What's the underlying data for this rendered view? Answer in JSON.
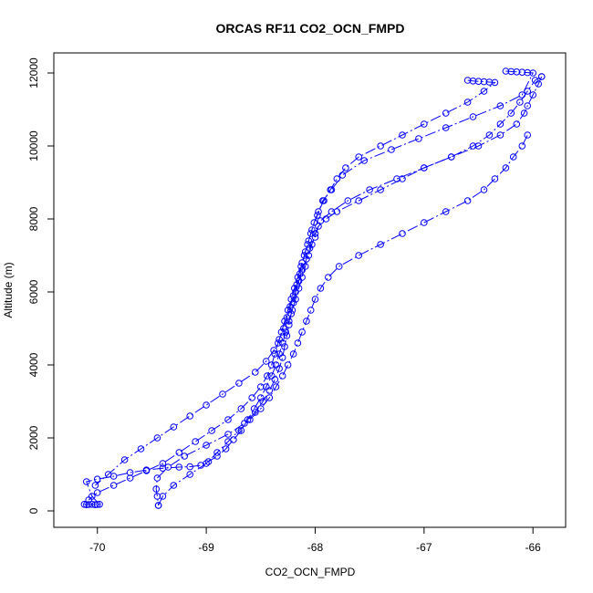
{
  "chart_data": {
    "type": "line",
    "title": "ORCAS RF11 CO2_OCN_FMPD",
    "xlabel": "CO2_OCN_FMPD",
    "ylabel": "Altitude (m)",
    "xlim": [
      -70.4,
      -65.7
    ],
    "ylim": [
      -450,
      12550
    ],
    "x_ticks": [
      -70,
      -69,
      -68,
      -67,
      -66
    ],
    "y_ticks": [
      0,
      2000,
      4000,
      6000,
      8000,
      10000,
      12000
    ],
    "grid": false,
    "legend": "none",
    "marker": "open-circle",
    "line_style": "dash-dot",
    "color": "#0000ff",
    "series": [
      {
        "x": [
          -70.12,
          -70.1,
          -70.08,
          -70.05,
          -70.02,
          -70.0,
          -69.98,
          -70.05,
          -70.1,
          -70.0,
          -69.85,
          -69.7,
          -69.55,
          -69.4,
          -69.25,
          -69.15,
          -69.05,
          -68.98,
          -68.9,
          -68.82,
          -68.75,
          -68.68,
          -68.62,
          -68.56,
          -68.5,
          -68.45,
          -68.4,
          -68.36,
          -68.33,
          -68.3,
          -68.27,
          -68.24,
          -68.21,
          -68.18,
          -68.15,
          -68.12,
          -68.09,
          -68.06,
          -68.03,
          -68.0,
          -67.95,
          -67.85,
          -67.7,
          -67.5,
          -67.25,
          -67.0,
          -66.75,
          -66.55,
          -66.4,
          -66.3,
          -66.2,
          -66.12,
          -66.05,
          -65.98,
          -65.92
        ],
        "y": [
          180,
          170,
          175,
          180,
          170,
          175,
          180,
          400,
          800,
          870,
          950,
          1050,
          1120,
          1170,
          1200,
          1210,
          1250,
          1350,
          1500,
          1700,
          1950,
          2200,
          2500,
          2800,
          3100,
          3400,
          3700,
          4000,
          4300,
          4600,
          4900,
          5200,
          5500,
          5800,
          6100,
          6400,
          6700,
          7000,
          7300,
          7600,
          7950,
          8200,
          8500,
          8800,
          9100,
          9400,
          9700,
          10000,
          10300,
          10600,
          10900,
          11200,
          11500,
          11800,
          11900
        ]
      },
      {
        "x": [
          -65.92,
          -65.95,
          -66.0,
          -66.05,
          -66.08,
          -66.15,
          -66.3,
          -66.5,
          -66.75,
          -67.0,
          -67.2,
          -67.4,
          -67.6,
          -67.8,
          -67.9,
          -67.97,
          -68.0,
          -68.05,
          -68.08,
          -68.12,
          -68.15,
          -68.18,
          -68.2,
          -68.22,
          -68.24,
          -68.26,
          -68.28,
          -68.3,
          -68.33,
          -68.37,
          -68.42,
          -68.48,
          -68.55,
          -68.65,
          -68.8,
          -69.0,
          -69.2,
          -69.35,
          -69.45,
          -69.46,
          -69.45,
          -69.44
        ],
        "y": [
          11900,
          11700,
          11400,
          11100,
          10900,
          10600,
          10300,
          10000,
          9700,
          9400,
          9100,
          8800,
          8500,
          8200,
          8000,
          7800,
          7500,
          7200,
          6900,
          6600,
          6300,
          6000,
          5700,
          5400,
          5100,
          4800,
          4500,
          4200,
          3900,
          3600,
          3300,
          3000,
          2700,
          2400,
          2100,
          1800,
          1500,
          1200,
          900,
          600,
          400,
          150
        ]
      },
      {
        "x": [
          -69.44,
          -69.4,
          -69.3,
          -69.15,
          -69.0,
          -68.9,
          -68.8,
          -68.7,
          -68.6,
          -68.5,
          -68.42,
          -68.36,
          -68.3,
          -68.25,
          -68.2,
          -68.16,
          -68.12,
          -68.08,
          -68.04,
          -68.0,
          -67.95,
          -67.88,
          -67.78,
          -67.6,
          -67.4,
          -67.2,
          -67.0,
          -66.8,
          -66.6,
          -66.45,
          -66.35,
          -66.25,
          -66.18,
          -66.1,
          -66.05
        ],
        "y": [
          150,
          400,
          700,
          1000,
          1300,
          1600,
          1900,
          2200,
          2500,
          2800,
          3100,
          3400,
          3700,
          4000,
          4300,
          4600,
          4900,
          5200,
          5500,
          5800,
          6100,
          6400,
          6700,
          7000,
          7300,
          7600,
          7900,
          8200,
          8500,
          8800,
          9100,
          9400,
          9700,
          10000,
          10300
        ]
      },
      {
        "x": [
          -66.6,
          -66.55,
          -66.5,
          -66.45,
          -66.4,
          -66.35,
          -66.45,
          -66.6,
          -66.8,
          -67.0,
          -67.2,
          -67.4,
          -67.6,
          -67.72,
          -67.8,
          -67.86,
          -67.92,
          -67.97,
          -68.01,
          -68.04,
          -68.07,
          -68.1,
          -68.13,
          -68.16,
          -68.19,
          -68.22,
          -68.25,
          -68.28,
          -68.31,
          -68.34,
          -68.37,
          -68.4,
          -68.44,
          -68.5,
          -68.58,
          -68.68,
          -68.8,
          -68.95,
          -69.1,
          -69.25,
          -69.4,
          -69.55,
          -69.7,
          -69.85,
          -70.0,
          -70.08
        ],
        "y": [
          11800,
          11780,
          11770,
          11760,
          11750,
          11740,
          11500,
          11200,
          10900,
          10600,
          10300,
          10000,
          9700,
          9400,
          9100,
          8800,
          8500,
          8200,
          7900,
          7600,
          7300,
          7000,
          6700,
          6400,
          6100,
          5800,
          5500,
          5200,
          4900,
          4600,
          4300,
          4000,
          3700,
          3400,
          3100,
          2800,
          2500,
          2200,
          1900,
          1600,
          1300,
          1100,
          900,
          700,
          500,
          300
        ]
      },
      {
        "x": [
          -66.25,
          -66.2,
          -66.15,
          -66.1,
          -66.05,
          -66.0,
          -66.1,
          -66.3,
          -66.55,
          -66.8,
          -67.05,
          -67.3,
          -67.55,
          -67.75,
          -67.85,
          -67.93,
          -67.98,
          -68.03,
          -68.06,
          -68.09,
          -68.12,
          -68.14,
          -68.17,
          -68.2,
          -68.23,
          -68.26,
          -68.29,
          -68.33,
          -68.38,
          -68.45,
          -68.55,
          -68.7,
          -68.85,
          -69.0,
          -69.15,
          -69.3,
          -69.45,
          -69.6,
          -69.75,
          -69.9,
          -70.02
        ],
        "y": [
          12050,
          12040,
          12030,
          12020,
          12010,
          12000,
          11400,
          11100,
          10800,
          10500,
          10200,
          9900,
          9600,
          9200,
          8800,
          8500,
          8100,
          7700,
          7400,
          7100,
          6800,
          6500,
          6200,
          5900,
          5600,
          5300,
          5000,
          4700,
          4400,
          4100,
          3800,
          3500,
          3200,
          2900,
          2600,
          2300,
          2000,
          1700,
          1400,
          1000,
          700
        ]
      }
    ]
  }
}
